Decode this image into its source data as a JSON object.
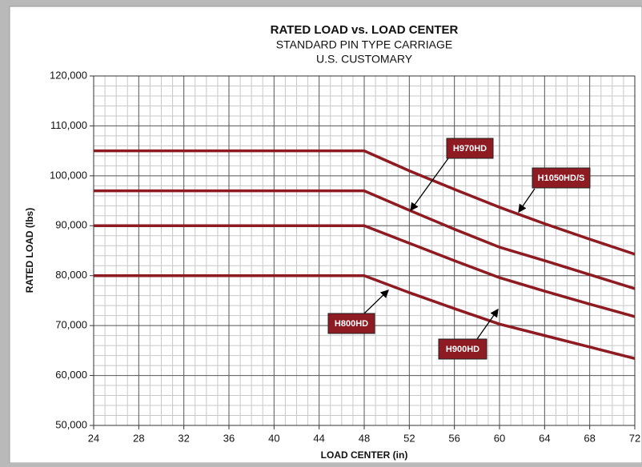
{
  "chart_data": {
    "type": "line",
    "title": "RATED LOAD vs. LOAD CENTER",
    "subtitle": "STANDARD PIN TYPE CARRIAGE",
    "subtitle2": "U.S. CUSTOMARY",
    "x_label": "LOAD CENTER (in)",
    "y_label": "RATED LOAD (lbs)",
    "x": [
      24,
      48,
      52,
      56,
      60,
      64,
      68,
      72
    ],
    "series": [
      {
        "name": "H1050HD/S",
        "color": "#8e1b22",
        "values": [
          105000,
          105000,
          101000,
          97300,
          93700,
          90400,
          87300,
          84300
        ]
      },
      {
        "name": "H970HD",
        "color": "#8e1b22",
        "values": [
          97000,
          97000,
          93100,
          89300,
          85700,
          83000,
          80200,
          77400
        ]
      },
      {
        "name": "H900HD",
        "color": "#8e1b22",
        "values": [
          90000,
          90000,
          86500,
          83000,
          79600,
          76900,
          74300,
          71800
        ]
      },
      {
        "name": "H800HD",
        "color": "#8e1b22",
        "values": [
          80000,
          80000,
          76600,
          73400,
          70300,
          68000,
          65700,
          63400
        ]
      }
    ],
    "xlim": [
      24,
      72
    ],
    "xticks": [
      24,
      28,
      32,
      36,
      40,
      44,
      48,
      52,
      56,
      60,
      64,
      68,
      72
    ],
    "ylim": [
      50000,
      120000
    ],
    "yticks": [
      {
        "value": 50000,
        "label": "50,000"
      },
      {
        "value": 60000,
        "label": "60,000"
      },
      {
        "value": 70000,
        "label": "70,000"
      },
      {
        "value": 80000,
        "label": "80,000"
      },
      {
        "value": 90000,
        "label": "90,000"
      },
      {
        "value": 100000,
        "label": "100,000"
      },
      {
        "value": 110000,
        "label": "110,000"
      },
      {
        "value": 120000,
        "label": "120,000"
      }
    ],
    "grid": true
  }
}
